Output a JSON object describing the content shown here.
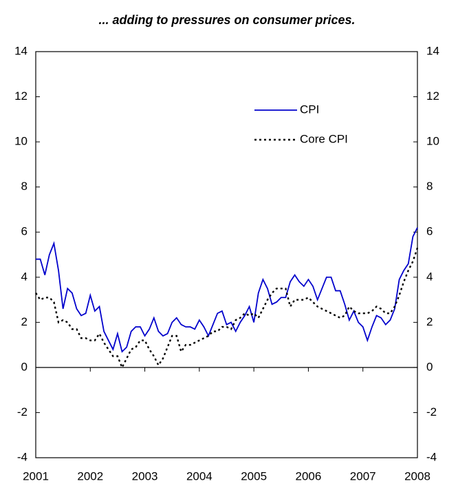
{
  "chart_data": {
    "type": "line",
    "title": "... adding to pressures on consumer prices.",
    "x": [
      2001,
      2001.083,
      2001.167,
      2001.25,
      2001.333,
      2001.417,
      2001.5,
      2001.583,
      2001.667,
      2001.75,
      2001.833,
      2001.917,
      2002,
      2002.083,
      2002.167,
      2002.25,
      2002.333,
      2002.417,
      2002.5,
      2002.583,
      2002.667,
      2002.75,
      2002.833,
      2002.917,
      2003,
      2003.083,
      2003.167,
      2003.25,
      2003.333,
      2003.417,
      2003.5,
      2003.583,
      2003.667,
      2003.75,
      2003.833,
      2003.917,
      2004,
      2004.083,
      2004.167,
      2004.25,
      2004.333,
      2004.417,
      2004.5,
      2004.583,
      2004.667,
      2004.75,
      2004.833,
      2004.917,
      2005,
      2005.083,
      2005.167,
      2005.25,
      2005.333,
      2005.417,
      2005.5,
      2005.583,
      2005.667,
      2005.75,
      2005.833,
      2005.917,
      2006,
      2006.083,
      2006.167,
      2006.25,
      2006.333,
      2006.417,
      2006.5,
      2006.583,
      2006.667,
      2006.75,
      2006.833,
      2006.917,
      2007,
      2007.083,
      2007.167,
      2007.25,
      2007.333,
      2007.417,
      2007.5,
      2007.583,
      2007.667,
      2007.75,
      2007.833,
      2007.917,
      2008
    ],
    "series": [
      {
        "name": "CPI",
        "color": "#0000cc",
        "dash": "solid",
        "values": [
          4.8,
          4.8,
          4.1,
          5.0,
          5.5,
          4.3,
          2.6,
          3.5,
          3.3,
          2.6,
          2.3,
          2.4,
          3.2,
          2.5,
          2.7,
          1.6,
          1.2,
          0.8,
          1.5,
          0.7,
          0.9,
          1.6,
          1.8,
          1.8,
          1.4,
          1.7,
          2.2,
          1.6,
          1.4,
          1.5,
          2.0,
          2.2,
          1.9,
          1.8,
          1.8,
          1.7,
          2.1,
          1.8,
          1.4,
          1.9,
          2.4,
          2.5,
          1.9,
          2.0,
          1.6,
          2.0,
          2.3,
          2.7,
          2.0,
          3.3,
          3.9,
          3.5,
          2.8,
          2.9,
          3.1,
          3.1,
          3.8,
          4.1,
          3.8,
          3.6,
          3.9,
          3.6,
          3.0,
          3.5,
          4.0,
          4.0,
          3.4,
          3.4,
          2.8,
          2.1,
          2.5,
          2.0,
          1.8,
          1.2,
          1.8,
          2.3,
          2.2,
          1.9,
          2.1,
          2.6,
          3.9,
          4.3,
          4.6,
          5.8,
          6.2
        ]
      },
      {
        "name": "Core CPI",
        "color": "#000000",
        "dash": "dotted",
        "values": [
          3.3,
          3.0,
          3.1,
          3.1,
          2.9,
          2.0,
          2.1,
          2.0,
          1.7,
          1.7,
          1.3,
          1.3,
          1.2,
          1.2,
          1.5,
          1.1,
          0.8,
          0.5,
          0.5,
          0.0,
          0.4,
          0.8,
          0.9,
          1.2,
          1.2,
          0.8,
          0.5,
          0.1,
          0.4,
          0.9,
          1.4,
          1.4,
          0.7,
          1.0,
          1.0,
          1.1,
          1.2,
          1.3,
          1.4,
          1.6,
          1.6,
          1.8,
          1.8,
          1.7,
          2.1,
          2.2,
          2.4,
          2.3,
          2.4,
          2.2,
          2.6,
          3.0,
          3.3,
          3.5,
          3.5,
          3.5,
          2.7,
          3.0,
          3.0,
          3.0,
          3.1,
          2.9,
          2.7,
          2.6,
          2.5,
          2.4,
          2.3,
          2.2,
          2.3,
          2.7,
          2.5,
          2.4,
          2.4,
          2.4,
          2.5,
          2.7,
          2.6,
          2.4,
          2.4,
          2.7,
          3.2,
          3.8,
          4.3,
          4.7,
          5.3
        ]
      }
    ],
    "xlim": [
      2001,
      2008
    ],
    "xticks": [
      2001,
      2002,
      2003,
      2004,
      2005,
      2006,
      2007,
      2008
    ],
    "ylim": [
      -4,
      14
    ],
    "yticks": [
      -4,
      -2,
      0,
      2,
      4,
      6,
      8,
      10,
      12,
      14
    ],
    "y2lim": [
      -4,
      14
    ],
    "y2ticks": [
      -4,
      -2,
      0,
      2,
      4,
      6,
      8,
      10,
      12,
      14
    ],
    "legend": "upper-right"
  }
}
